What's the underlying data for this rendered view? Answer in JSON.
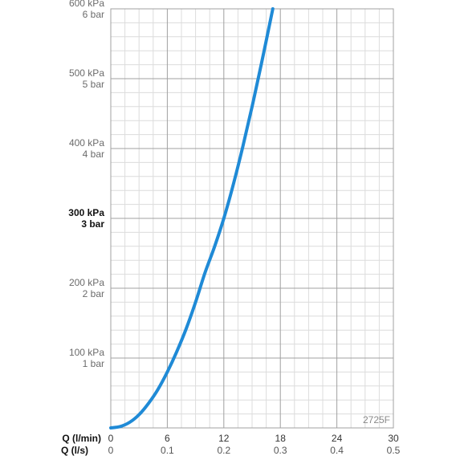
{
  "chart_data": {
    "type": "line",
    "title": "",
    "code_label": "2725F",
    "x_axis_primary": {
      "label": "Q (l/min)",
      "ticks": [
        "0",
        "6",
        "12",
        "18",
        "24",
        "30"
      ],
      "range": [
        0,
        30
      ]
    },
    "x_axis_secondary": {
      "label": "Q (l/s)",
      "ticks": [
        "0",
        "0.1",
        "0.2",
        "0.3",
        "0.4",
        "0.5"
      ],
      "range": [
        0,
        0.5
      ]
    },
    "y_axis": {
      "unit": "kPa",
      "range": [
        0,
        600
      ],
      "ticks": [
        {
          "value": 100,
          "kpa": "100 kPa",
          "bar": "1 bar",
          "bold": false
        },
        {
          "value": 200,
          "kpa": "200 kPa",
          "bar": "2 bar",
          "bold": false
        },
        {
          "value": 300,
          "kpa": "300 kPa",
          "bar": "3 bar",
          "bold": true
        },
        {
          "value": 400,
          "kpa": "400 kPa",
          "bar": "4 bar",
          "bold": false
        },
        {
          "value": 500,
          "kpa": "500 kPa",
          "bar": "5 bar",
          "bold": false
        },
        {
          "value": 600,
          "kpa": "600 kPa",
          "bar": "6 bar",
          "bold": false
        }
      ]
    },
    "grid": true,
    "colors": {
      "curve": "#1f8ad6",
      "major_grid": "#a0a0a0",
      "minor_grid": "#dcdcdc"
    },
    "series": [
      {
        "x": [
          0,
          1,
          2,
          3,
          4,
          5,
          6,
          7,
          8,
          9,
          10,
          11,
          12,
          13,
          14,
          15,
          16,
          17.2
        ],
        "y": [
          0,
          2,
          8,
          19,
          35,
          55,
          80,
          109,
          142,
          180,
          222,
          259,
          300,
          348,
          402,
          460,
          522,
          600
        ]
      }
    ]
  }
}
